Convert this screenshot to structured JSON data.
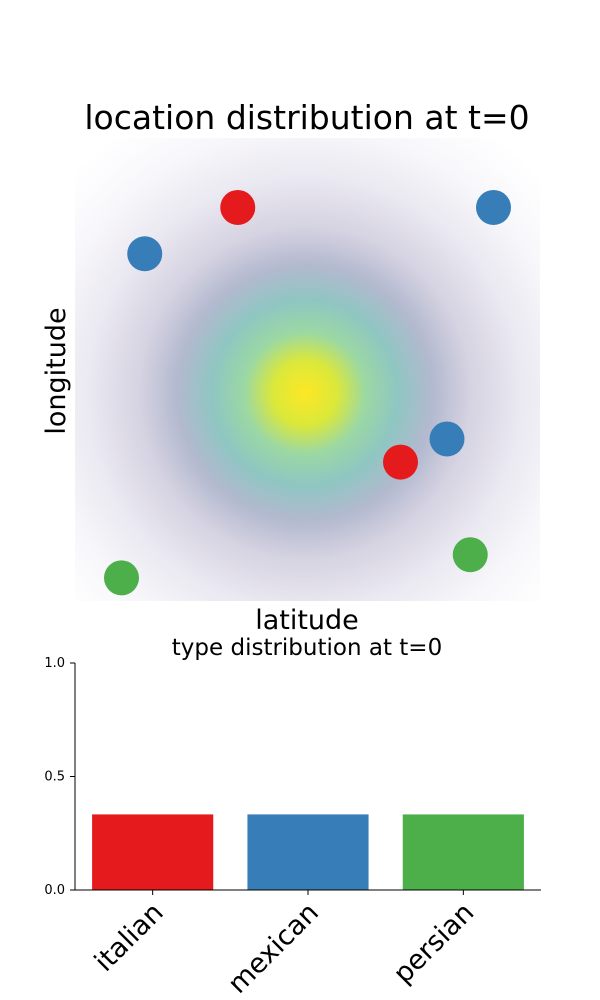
{
  "chart_data": [
    {
      "type": "scatter",
      "title": "location distribution at t=0",
      "xlabel": "latitude",
      "ylabel": "longitude",
      "xlim": [
        0,
        1
      ],
      "ylim": [
        0,
        1
      ],
      "grid": false,
      "background": "2D gaussian density heatmap (viridis-like, fading to white), peak near center",
      "density_peak": {
        "x": 0.495,
        "y": 0.455
      },
      "series": [
        {
          "category": "italian",
          "color": "#e41a1c",
          "points": [
            {
              "x": 0.35,
              "y": 0.85
            },
            {
              "x": 0.7,
              "y": 0.3
            }
          ]
        },
        {
          "category": "mexican",
          "color": "#377eb8",
          "points": [
            {
              "x": 0.15,
              "y": 0.75
            },
            {
              "x": 0.8,
              "y": 0.35
            },
            {
              "x": 0.9,
              "y": 0.85
            }
          ]
        },
        {
          "category": "persian",
          "color": "#4daf4a",
          "points": [
            {
              "x": 0.1,
              "y": 0.05
            },
            {
              "x": 0.85,
              "y": 0.1
            }
          ]
        }
      ]
    },
    {
      "type": "bar",
      "title": "type distribution at t=0",
      "categories": [
        "italian",
        "mexican",
        "persian"
      ],
      "values": [
        0.333,
        0.333,
        0.333
      ],
      "colors": [
        "#e41a1c",
        "#377eb8",
        "#4daf4a"
      ],
      "ylim": [
        0,
        1
      ],
      "yticks": [
        {
          "value": 0.0,
          "label": "0.0"
        },
        {
          "value": 0.5,
          "label": "0.5"
        },
        {
          "value": 1.0,
          "label": "1.0"
        }
      ]
    }
  ]
}
